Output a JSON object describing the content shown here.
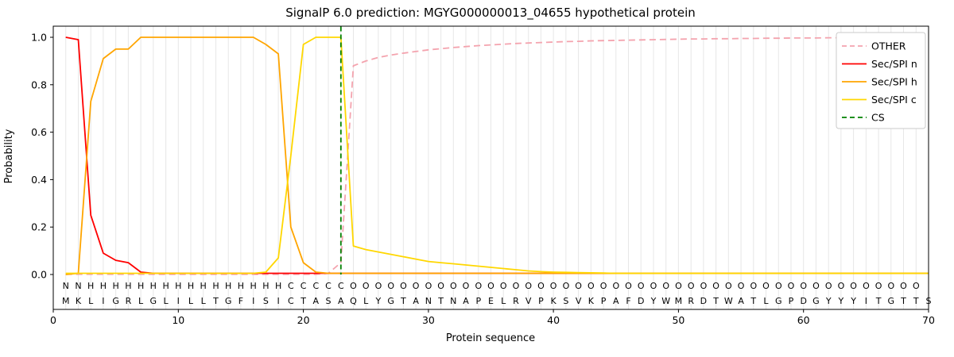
{
  "chart_data": {
    "type": "line",
    "title": "SignalP 6.0 prediction: MGYG000000013_04655 hypothetical protein",
    "xlabel": "Protein sequence",
    "ylabel": "Probability",
    "xlim": [
      0,
      70
    ],
    "ylim": [
      -0.15,
      1.05
    ],
    "xticks": [
      0,
      10,
      20,
      30,
      40,
      50,
      60,
      70
    ],
    "yticks": [
      0.0,
      0.2,
      0.4,
      0.6,
      0.8,
      1.0
    ],
    "ytick_labels": [
      "0.0",
      "0.2",
      "0.4",
      "0.6",
      "0.8",
      "1.0"
    ],
    "grid": "vertical line at every residue position",
    "legend_position": "upper-right",
    "positions_start": 1,
    "series": [
      {
        "name": "OTHER",
        "color": "#f4a3ae",
        "dash": true,
        "values": [
          0.001,
          0.001,
          0.001,
          0.001,
          0.001,
          0.001,
          0.001,
          0.001,
          0.001,
          0.001,
          0.001,
          0.001,
          0.001,
          0.001,
          0.001,
          0.001,
          0.001,
          0.001,
          0.001,
          0.001,
          0.001,
          0.005,
          0.05,
          0.88,
          0.9,
          0.915,
          0.925,
          0.933,
          0.94,
          0.947,
          0.952,
          0.957,
          0.961,
          0.965,
          0.968,
          0.971,
          0.974,
          0.976,
          0.978,
          0.98,
          0.982,
          0.983,
          0.985,
          0.986,
          0.987,
          0.988,
          0.989,
          0.99,
          0.991,
          0.992,
          0.993,
          0.993,
          0.994,
          0.994,
          0.995,
          0.995,
          0.996,
          0.996,
          0.997,
          0.997,
          0.997,
          0.998,
          0.998,
          0.998,
          0.998,
          0.999,
          0.999,
          0.999,
          0.999,
          1.0
        ]
      },
      {
        "name": "Sec/SPI n",
        "color": "#ff0000",
        "dash": false,
        "values": [
          1.0,
          0.99,
          0.25,
          0.09,
          0.06,
          0.05,
          0.01,
          0.005,
          0.005,
          0.005,
          0.005,
          0.005,
          0.005,
          0.005,
          0.005,
          0.005,
          0.005,
          0.005,
          0.005,
          0.005,
          0.005,
          0.005,
          0.005,
          0.005,
          0.005,
          0.005,
          0.005,
          0.005,
          0.005,
          0.005,
          0.005,
          0.005,
          0.005,
          0.005,
          0.005,
          0.005,
          0.005,
          0.005,
          0.005,
          0.005,
          0.005,
          0.005,
          0.005,
          0.005,
          0.005,
          0.005,
          0.005,
          0.005,
          0.005,
          0.005,
          0.005,
          0.005,
          0.005,
          0.005,
          0.005,
          0.005,
          0.005,
          0.005,
          0.005,
          0.005,
          0.005,
          0.005,
          0.005,
          0.005,
          0.005,
          0.005,
          0.005,
          0.005,
          0.005,
          0.005
        ]
      },
      {
        "name": "Sec/SPI h",
        "color": "#ffa500",
        "dash": false,
        "values": [
          0.0,
          0.005,
          0.73,
          0.91,
          0.95,
          0.95,
          1.0,
          1.0,
          1.0,
          1.0,
          1.0,
          1.0,
          1.0,
          1.0,
          1.0,
          1.0,
          0.97,
          0.93,
          0.2,
          0.05,
          0.01,
          0.005,
          0.005,
          0.005,
          0.005,
          0.005,
          0.005,
          0.005,
          0.005,
          0.005,
          0.005,
          0.005,
          0.005,
          0.005,
          0.005,
          0.005,
          0.005,
          0.005,
          0.005,
          0.005,
          0.005,
          0.005,
          0.005,
          0.005,
          0.005,
          0.005,
          0.005,
          0.005,
          0.005,
          0.005,
          0.005,
          0.005,
          0.005,
          0.005,
          0.005,
          0.005,
          0.005,
          0.005,
          0.005,
          0.005,
          0.005,
          0.005,
          0.005,
          0.005,
          0.005,
          0.005,
          0.005,
          0.005,
          0.005,
          0.005
        ]
      },
      {
        "name": "Sec/SPI c",
        "color": "#ffd700",
        "dash": false,
        "values": [
          0.005,
          0.005,
          0.005,
          0.005,
          0.005,
          0.005,
          0.005,
          0.005,
          0.005,
          0.005,
          0.005,
          0.005,
          0.005,
          0.005,
          0.005,
          0.005,
          0.01,
          0.07,
          0.5,
          0.97,
          1.0,
          1.0,
          1.0,
          0.12,
          0.105,
          0.095,
          0.085,
          0.075,
          0.065,
          0.055,
          0.05,
          0.045,
          0.04,
          0.035,
          0.03,
          0.025,
          0.02,
          0.015,
          0.012,
          0.01,
          0.009,
          0.008,
          0.007,
          0.006,
          0.005,
          0.005,
          0.005,
          0.005,
          0.005,
          0.005,
          0.005,
          0.005,
          0.005,
          0.005,
          0.005,
          0.005,
          0.005,
          0.005,
          0.005,
          0.005,
          0.005,
          0.005,
          0.005,
          0.005,
          0.005,
          0.005,
          0.005,
          0.005,
          0.005,
          0.005
        ]
      }
    ],
    "cs": {
      "label": "CS",
      "position": 23,
      "color": "#008000",
      "dash": true
    },
    "sequence": "MKLIGRLGLILLTGFISICTASAQLYGTANTNAPELRVPKSVKPAFDYWMRDTWATLGPDGYYYITGTTS",
    "regions": "NNHHHHHHHHHHHHHHHHCCCCCOOOOOOOOOOOOOOOOOOOOOOOOOOOOOOOOOOOOOOOOOOOOOO",
    "region_colors": {
      "N": "#ff0000",
      "H": "#ffa500",
      "C": "#ffd700",
      "O": "#8c8c8c"
    },
    "legend": [
      {
        "label": "OTHER",
        "color": "#f4a3ae",
        "dash": true
      },
      {
        "label": "Sec/SPI n",
        "color": "#ff0000",
        "dash": false
      },
      {
        "label": "Sec/SPI h",
        "color": "#ffa500",
        "dash": false
      },
      {
        "label": "Sec/SPI c",
        "color": "#ffd700",
        "dash": false
      },
      {
        "label": "CS",
        "color": "#008000",
        "dash": true
      }
    ]
  }
}
